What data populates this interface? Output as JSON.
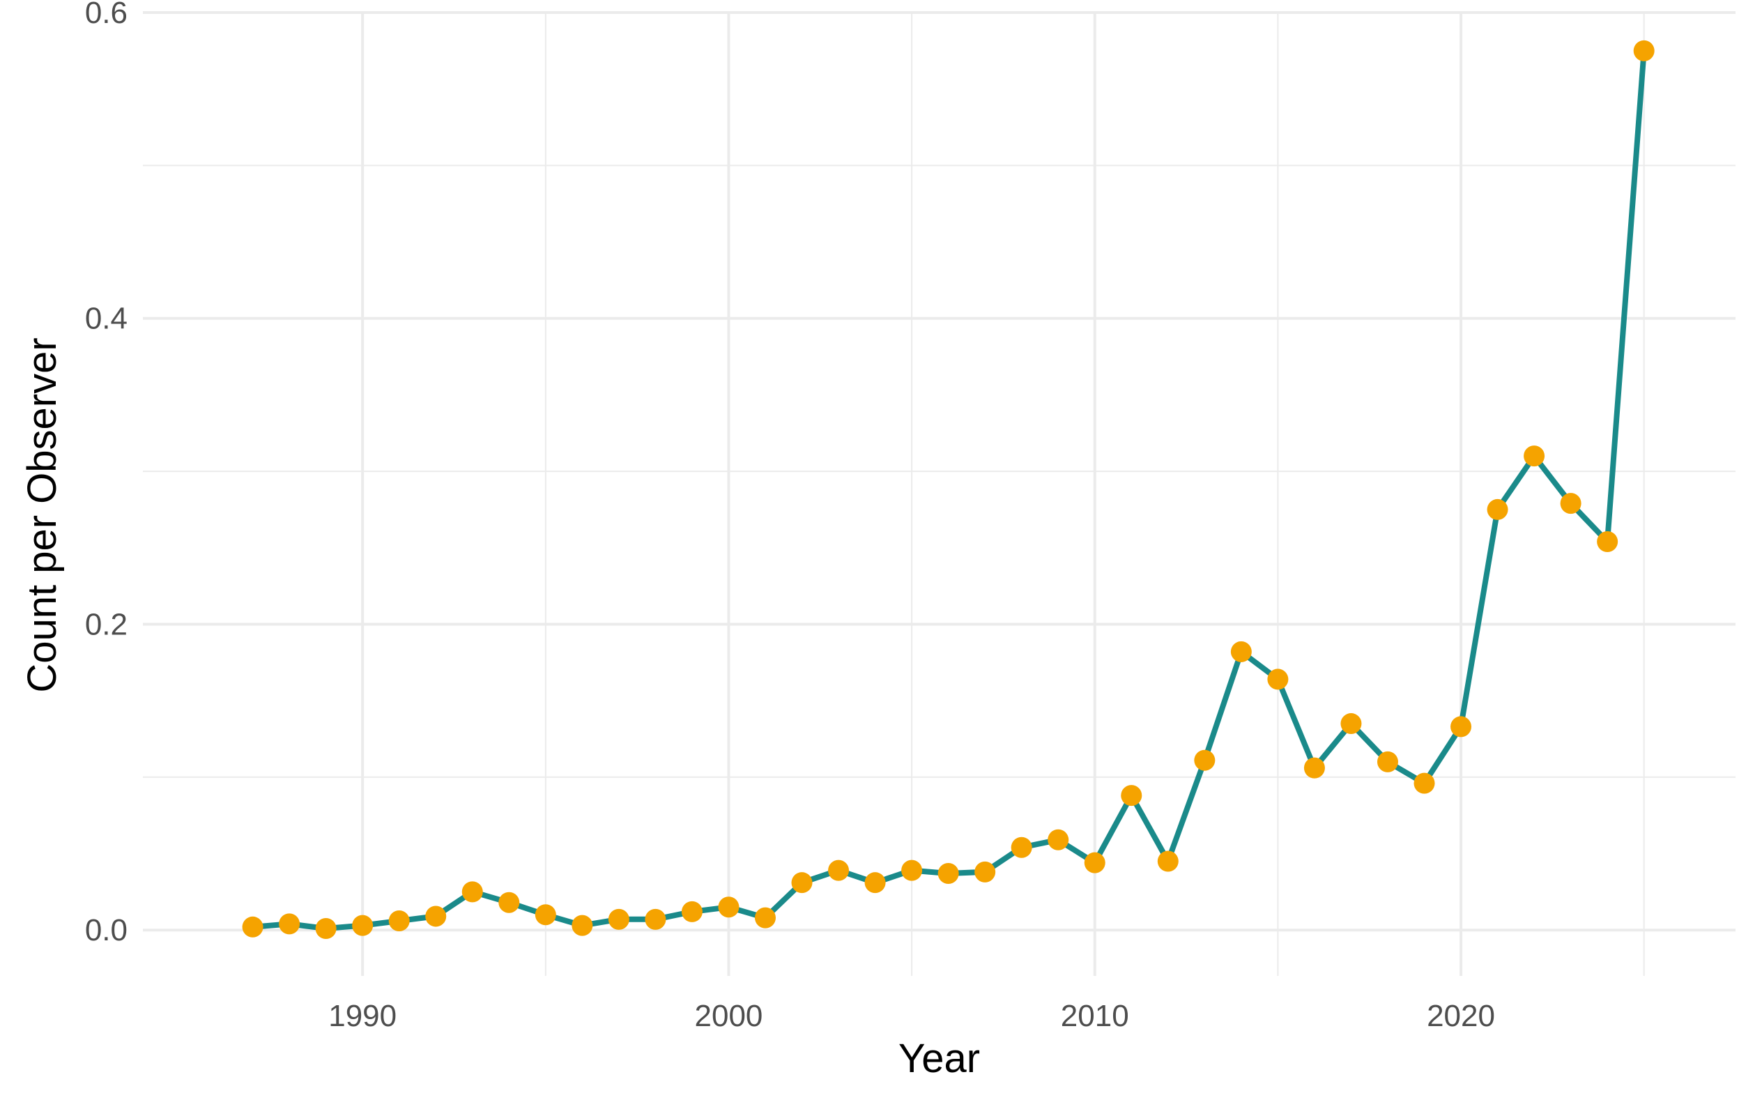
{
  "chart_data": {
    "type": "line",
    "title": "",
    "xlabel": "Year",
    "ylabel": "Count per Observer",
    "xlim": [
      1984.0,
      2027.5
    ],
    "ylim": [
      -0.03,
      0.6
    ],
    "x_ticks": [
      1990,
      2000,
      2010,
      2020
    ],
    "y_ticks": [
      0.0,
      0.2,
      0.4,
      0.6
    ],
    "x_tick_labels": [
      "1990",
      "2000",
      "2010",
      "2020"
    ],
    "y_tick_labels": [
      "0.0",
      "0.2",
      "0.4",
      "0.6"
    ],
    "grid": true,
    "legend": "none",
    "colors": {
      "line": "#1a8a8a",
      "points": "#f5a300",
      "grid": "#ebebeb"
    },
    "series": [
      {
        "x": [
          1987,
          1988,
          1989,
          1990,
          1991,
          1992,
          1993,
          1994,
          1995,
          1996,
          1997,
          1998,
          1999,
          2000,
          2001,
          2002,
          2003,
          2004,
          2005,
          2006,
          2007,
          2008,
          2009,
          2010,
          2011,
          2012,
          2013,
          2014,
          2015,
          2016,
          2017,
          2018,
          2019,
          2020,
          2021,
          2022,
          2023,
          2024,
          2025
        ],
        "y": [
          0.002,
          0.004,
          0.001,
          0.003,
          0.006,
          0.009,
          0.025,
          0.018,
          0.01,
          0.003,
          0.007,
          0.007,
          0.012,
          0.015,
          0.008,
          0.031,
          0.039,
          0.031,
          0.039,
          0.037,
          0.038,
          0.054,
          0.059,
          0.044,
          0.088,
          0.045,
          0.111,
          0.182,
          0.164,
          0.106,
          0.135,
          0.11,
          0.096,
          0.133,
          0.275,
          0.31,
          0.279,
          0.254,
          0.575
        ]
      }
    ]
  }
}
